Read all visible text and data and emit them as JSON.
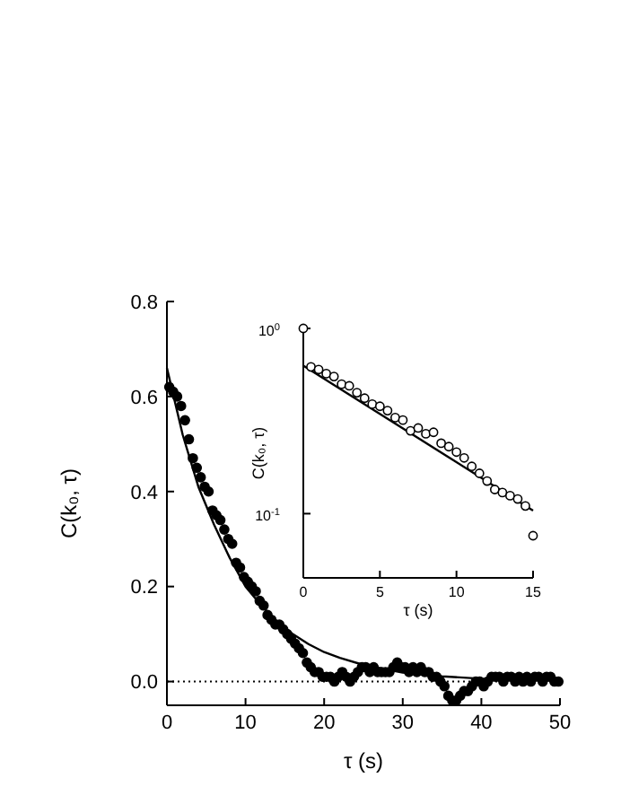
{
  "chart_data": [
    {
      "type": "scatter",
      "xlabel": "τ (s)",
      "ylabel": "C(k₀, τ)",
      "xlim": [
        0,
        50
      ],
      "ylim": [
        -0.05,
        0.8
      ],
      "xticks": [
        0,
        10,
        20,
        30,
        40,
        50
      ],
      "yticks": [
        {
          "value": 0,
          "label": "0.0"
        },
        0.2,
        0.4,
        0.6,
        0.8
      ],
      "grid": false,
      "ref_lines": [
        {
          "axis": "y",
          "value": 0,
          "line_style": "dotted",
          "color": "#000000"
        }
      ],
      "series": [
        {
          "marker": "circle",
          "color": "#000000",
          "x": [
            0.3,
            0.8,
            1.3,
            1.8,
            2.3,
            2.8,
            3.3,
            3.8,
            4.3,
            4.8,
            5.3,
            5.8,
            6.3,
            6.8,
            7.3,
            7.8,
            8.3,
            8.8,
            9.3,
            9.8,
            10.3,
            10.8,
            11.3,
            11.8,
            12.3,
            12.8,
            13.3,
            13.8,
            14.3,
            14.8,
            15.3,
            15.8,
            16.3,
            16.8,
            17.3,
            17.8,
            18.3,
            18.8,
            19.3,
            19.8,
            20.3,
            20.8,
            21.3,
            21.8,
            22.3,
            22.8,
            23.3,
            23.8,
            24.3,
            24.8,
            25.3,
            25.8,
            26.3,
            26.8,
            27.3,
            27.8,
            28.3,
            28.8,
            29.3,
            29.8,
            30.3,
            30.8,
            31.3,
            31.8,
            32.3,
            32.8,
            33.3,
            33.8,
            34.3,
            34.8,
            35.3,
            35.8,
            36.3,
            36.8,
            37.3,
            37.8,
            38.3,
            38.8,
            39.3,
            39.8,
            40.3,
            40.8,
            41.3,
            41.8,
            42.3,
            42.8,
            43.3,
            43.8,
            44.3,
            44.8,
            45.3,
            45.8,
            46.3,
            46.8,
            47.3,
            47.8,
            48.3,
            48.8,
            49.3,
            49.8
          ],
          "values": [
            0.62,
            0.61,
            0.6,
            0.58,
            0.55,
            0.51,
            0.47,
            0.45,
            0.43,
            0.41,
            0.4,
            0.36,
            0.35,
            0.34,
            0.32,
            0.3,
            0.29,
            0.25,
            0.24,
            0.22,
            0.21,
            0.2,
            0.19,
            0.17,
            0.16,
            0.14,
            0.13,
            0.12,
            0.12,
            0.11,
            0.1,
            0.09,
            0.08,
            0.07,
            0.06,
            0.04,
            0.03,
            0.02,
            0.02,
            0.01,
            0.01,
            0.01,
            0,
            0.01,
            0.02,
            0.01,
            0,
            0.01,
            0.02,
            0.03,
            0.03,
            0.02,
            0.03,
            0.02,
            0.02,
            0.02,
            0.02,
            0.03,
            0.04,
            0.03,
            0.03,
            0.02,
            0.03,
            0.02,
            0.03,
            0.02,
            0.02,
            0.01,
            0.01,
            0,
            -0.01,
            -0.03,
            -0.04,
            -0.04,
            -0.03,
            -0.02,
            -0.02,
            -0.01,
            0,
            0,
            -0.01,
            0,
            0.01,
            0.01,
            0.01,
            0,
            0.01,
            0.01,
            0,
            0.01,
            0,
            0.01,
            0,
            0.01,
            0.01,
            0,
            0.01,
            0.01,
            0,
            0
          ]
        },
        {
          "type": "line",
          "color": "#000000",
          "x": [
            0,
            2,
            4,
            6,
            8,
            10,
            12,
            14,
            16,
            18,
            20,
            22,
            25,
            30,
            35,
            40,
            50
          ],
          "values": [
            0.66,
            0.52,
            0.41,
            0.33,
            0.26,
            0.2,
            0.16,
            0.127,
            0.1,
            0.079,
            0.062,
            0.05,
            0.035,
            0.019,
            0.011,
            0.006,
            0.002
          ]
        }
      ]
    },
    {
      "type": "scatter",
      "xlabel": "τ (s)",
      "ylabel": "C(k₀, τ)",
      "xlim": [
        0,
        15
      ],
      "ylim": [
        0.045,
        1
      ],
      "xticks": [
        0,
        5,
        10,
        15
      ],
      "yticks": [
        {
          "value": 1,
          "label": "10$^{0}$"
        },
        {
          "value": 0.1,
          "label": "10$^{-1}$"
        }
      ],
      "log": "y",
      "grid": false,
      "series": [
        {
          "marker": "circle",
          "color": "#000000",
          "x": [
            0,
            0.5,
            1,
            1.5,
            2,
            2.5,
            3,
            3.5,
            4,
            4.5,
            5,
            5.5,
            6,
            6.5,
            7,
            7.5,
            8,
            8.5,
            9,
            9.5,
            10,
            10.5,
            11,
            11.5,
            12,
            12.5,
            13,
            13.5,
            14,
            14.5,
            15
          ],
          "values": [
            1,
            0.62,
            0.6,
            0.57,
            0.55,
            0.5,
            0.49,
            0.45,
            0.42,
            0.39,
            0.38,
            0.36,
            0.33,
            0.32,
            0.28,
            0.29,
            0.27,
            0.275,
            0.24,
            0.23,
            0.215,
            0.2,
            0.18,
            0.165,
            0.15,
            0.135,
            0.13,
            0.125,
            0.12,
            0.11,
            0.076
          ]
        },
        {
          "type": "line",
          "color": "#000000",
          "x": [
            0,
            15
          ],
          "values": [
            0.63,
            0.104
          ]
        }
      ]
    }
  ]
}
